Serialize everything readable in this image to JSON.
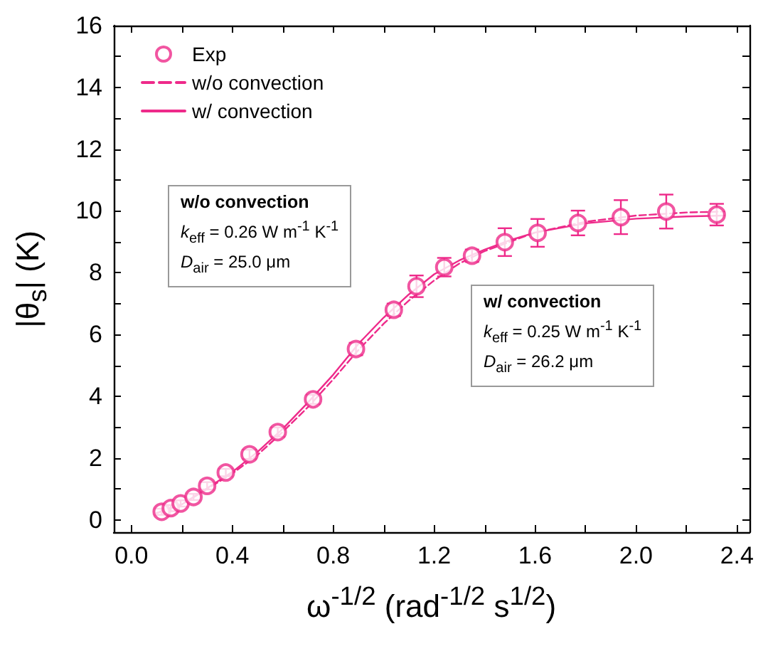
{
  "chart_data": {
    "type": "scatter",
    "xlabel": "ω$^{-1/2}$ (rad$^{-1/2}$ s$^{1/2}$)",
    "ylabel": "|θ$_{s}$| (K)",
    "xlim": [
      -0.07,
      2.45
    ],
    "xticks": [
      {
        "value": 0,
        "label": "0.0"
      },
      {
        "value": 0.2,
        "label": null
      },
      {
        "value": 0.4,
        "label": "0.4"
      },
      {
        "value": 0.6,
        "label": null
      },
      {
        "value": 0.8,
        "label": "0.8"
      },
      {
        "value": 1.0,
        "label": null
      },
      {
        "value": 1.2,
        "label": "1.2"
      },
      {
        "value": 1.4,
        "label": null
      },
      {
        "value": 1.6,
        "label": "1.6"
      },
      {
        "value": 1.8,
        "label": null
      },
      {
        "value": 2.0,
        "label": "2.0"
      },
      {
        "value": 2.2,
        "label": null
      },
      {
        "value": 2.4,
        "label": "2.4"
      }
    ],
    "ylim": [
      -0.4,
      16
    ],
    "yticks": [
      0,
      {
        "value": 1,
        "label": null
      },
      2,
      {
        "value": 3,
        "label": null
      },
      4,
      {
        "value": 5,
        "label": null
      },
      6,
      {
        "value": 7,
        "label": null
      },
      8,
      {
        "value": 9,
        "label": null
      },
      10,
      {
        "value": 11,
        "label": null
      },
      12,
      {
        "value": 13,
        "label": null
      },
      14,
      {
        "value": 15,
        "label": null
      },
      16
    ],
    "grid": false,
    "legend": "top left",
    "annotations": [
      "w/o convection\nk$_{eff}$ = 0.26 W m$^{-1}$ K$^{-1}$\nD$_{air}$ = 25.0 μm",
      "w/ convection\nk$_{eff}$ = 0.25 W m$^{-1}$ K$^{-1}$\nD$_{air}$ = 26.2 μm"
    ],
    "series": [
      {
        "name": "Exp",
        "marker": "circle",
        "color": "#ee2a8a",
        "x": [
          0.12,
          0.156,
          0.195,
          0.246,
          0.3,
          0.374,
          0.468,
          0.58,
          0.72,
          0.89,
          1.04,
          1.13,
          1.24,
          1.35,
          1.48,
          1.61,
          1.77,
          1.94,
          2.12,
          2.32
        ],
        "values": [
          0.26,
          0.38,
          0.53,
          0.74,
          1.1,
          1.53,
          2.12,
          2.84,
          3.9,
          5.53,
          6.8,
          7.56,
          8.18,
          8.55,
          8.99,
          9.29,
          9.61,
          9.8,
          9.98,
          9.88
        ],
        "errors": [
          0.1,
          0.1,
          0.1,
          0.1,
          0.12,
          0.12,
          0.15,
          0.15,
          0.15,
          0.2,
          0.2,
          0.35,
          0.3,
          0.2,
          0.45,
          0.45,
          0.4,
          0.55,
          0.55,
          0.35
        ]
      },
      {
        "name": "w/o convection",
        "type": "line",
        "marker": "none",
        "line_style": "dashed",
        "color": "#ee2a8a",
        "x": [
          0.1,
          0.2,
          0.3,
          0.4,
          0.5,
          0.6,
          0.7,
          0.8,
          0.9,
          1.0,
          1.1,
          1.2,
          1.3,
          1.4,
          1.5,
          1.6,
          1.8,
          2.0,
          2.2,
          2.35
        ],
        "values": [
          0.22,
          0.5,
          1.0,
          1.5,
          2.1,
          2.85,
          3.65,
          4.55,
          5.5,
          6.35,
          7.1,
          7.75,
          8.3,
          8.7,
          9.0,
          9.3,
          9.65,
          9.85,
          9.95,
          9.98
        ]
      },
      {
        "name": "w/ convection",
        "type": "line",
        "marker": "none",
        "line_style": "solid",
        "color": "#ee2a8a",
        "x": [
          0.1,
          0.2,
          0.3,
          0.4,
          0.5,
          0.6,
          0.7,
          0.8,
          0.9,
          1.0,
          1.1,
          1.2,
          1.3,
          1.4,
          1.5,
          1.6,
          1.8,
          2.0,
          2.2,
          2.35
        ],
        "values": [
          0.22,
          0.5,
          1.02,
          1.55,
          2.2,
          2.95,
          3.8,
          4.7,
          5.7,
          6.55,
          7.3,
          7.95,
          8.4,
          8.75,
          9.05,
          9.3,
          9.6,
          9.75,
          9.82,
          9.85
        ]
      }
    ]
  }
}
